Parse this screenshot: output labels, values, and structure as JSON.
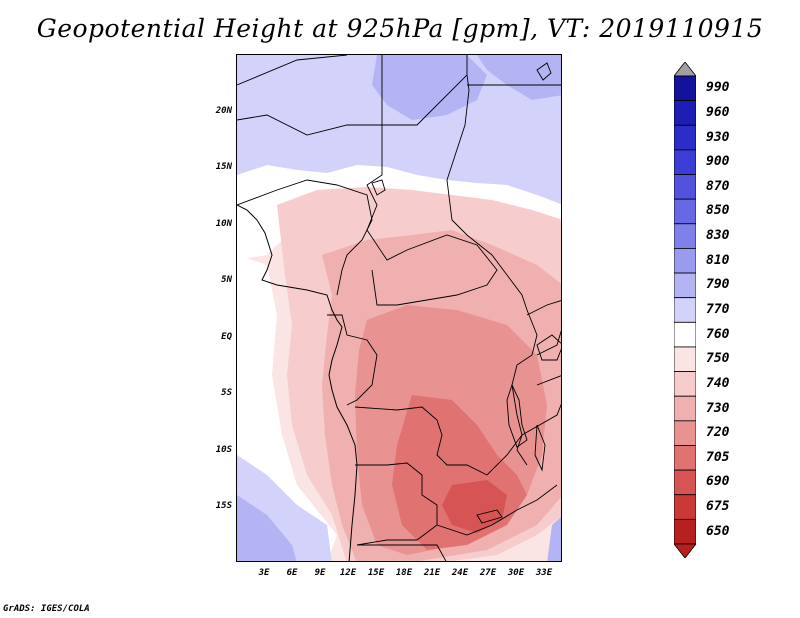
{
  "title": "Geopotential Height at 925hPa [gpm], VT: 2019110915",
  "y_axis": {
    "labels": [
      "20N",
      "15N",
      "10N",
      "5N",
      "EQ",
      "5S",
      "10S",
      "15S"
    ]
  },
  "x_axis": {
    "labels": [
      "3E",
      "6E",
      "9E",
      "12E",
      "15E",
      "18E",
      "21E",
      "24E",
      "27E",
      "30E",
      "33E"
    ]
  },
  "colorbar": {
    "labels": [
      "990",
      "960",
      "930",
      "900",
      "870",
      "850",
      "830",
      "810",
      "790",
      "770",
      "760",
      "750",
      "740",
      "730",
      "720",
      "705",
      "690",
      "675",
      "650"
    ],
    "top_color": "#a0a0a0",
    "colors": [
      "#12129a",
      "#1e1eb4",
      "#2c2cc8",
      "#3c3cd6",
      "#5252de",
      "#6868e4",
      "#8080ea",
      "#9a9aef",
      "#b4b4f4",
      "#d2d2fa",
      "#ffffff",
      "#fbe4e4",
      "#f6cccc",
      "#f0b0b0",
      "#e89292",
      "#e07272",
      "#d65454",
      "#ca3838",
      "#b82020"
    ]
  },
  "credit": "GrADS: IGES/COLA",
  "map": {
    "region": "Central Africa",
    "lat_range": [
      -20,
      24
    ],
    "lon_range": [
      0,
      35
    ]
  }
}
